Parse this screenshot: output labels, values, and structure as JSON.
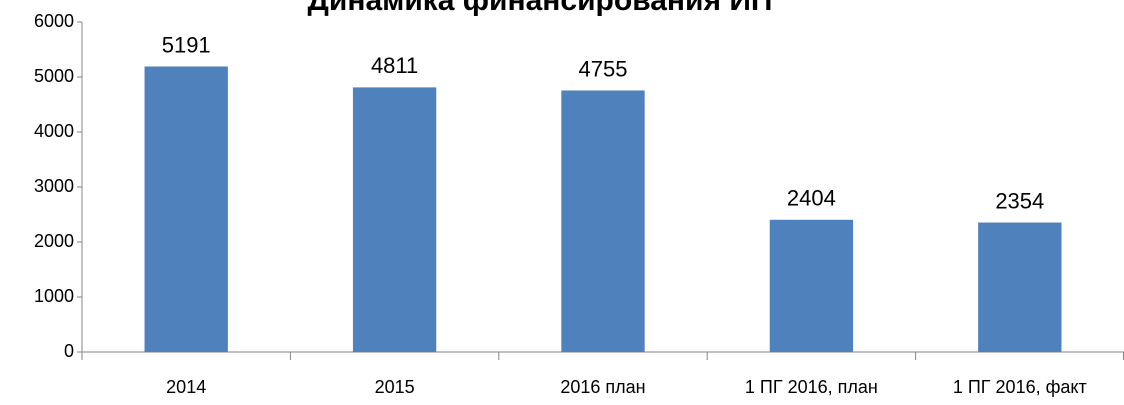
{
  "chart_data": {
    "type": "bar",
    "title": "Динамика финансирования ИП",
    "categories": [
      "2014",
      "2015",
      "2016 план",
      "1 ПГ 2016, план",
      "1 ПГ 2016, факт"
    ],
    "values": [
      5191,
      4811,
      4755,
      2404,
      2354
    ],
    "color": "#4f81bd",
    "ylim": [
      0,
      6000
    ],
    "yticks": [
      0,
      1000,
      2000,
      3000,
      4000,
      5000,
      6000
    ],
    "grid": false
  }
}
